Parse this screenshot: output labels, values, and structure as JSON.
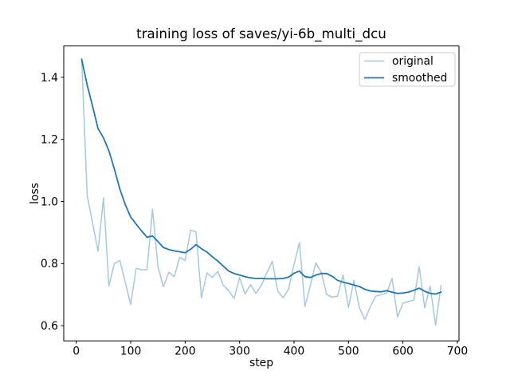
{
  "figure": {
    "title": "training loss of saves/yi-6b_multi_dcu",
    "background_color": "#ffffff",
    "spine_color": "#000000"
  },
  "chart_data": {
    "type": "line",
    "title": "training loss of saves/yi-6b_multi_dcu",
    "xlabel": "step",
    "ylabel": "loss",
    "xlim": [
      -23,
      703
    ],
    "ylim": [
      0.551,
      1.501
    ],
    "xticks": [
      0,
      100,
      200,
      300,
      400,
      500,
      600,
      700
    ],
    "yticks": [
      0.6,
      0.8,
      1.0,
      1.2,
      1.4
    ],
    "grid": false,
    "legend_position": "upper right",
    "x": [
      10,
      20,
      30,
      40,
      50,
      60,
      70,
      80,
      90,
      100,
      110,
      120,
      130,
      140,
      150,
      160,
      170,
      180,
      190,
      200,
      210,
      220,
      230,
      240,
      250,
      260,
      270,
      280,
      290,
      300,
      310,
      320,
      330,
      340,
      350,
      360,
      370,
      380,
      390,
      400,
      410,
      420,
      430,
      440,
      450,
      460,
      470,
      480,
      490,
      500,
      510,
      520,
      530,
      540,
      550,
      560,
      570,
      580,
      590,
      600,
      610,
      620,
      630,
      640,
      650,
      660,
      670
    ],
    "series": [
      {
        "name": "original",
        "color": "#a5c8e1",
        "linewidth": 1.5,
        "values": [
          1.458,
          1.02,
          0.93,
          0.84,
          1.012,
          0.728,
          0.8,
          0.81,
          0.74,
          0.668,
          0.785,
          0.78,
          0.78,
          0.975,
          0.79,
          0.725,
          0.772,
          0.758,
          0.82,
          0.81,
          0.908,
          0.902,
          0.69,
          0.77,
          0.755,
          0.775,
          0.73,
          0.713,
          0.688,
          0.755,
          0.702,
          0.732,
          0.704,
          0.73,
          0.77,
          0.807,
          0.712,
          0.69,
          0.718,
          0.797,
          0.868,
          0.662,
          0.73,
          0.803,
          0.772,
          0.7,
          0.692,
          0.695,
          0.764,
          0.658,
          0.746,
          0.658,
          0.62,
          0.66,
          0.695,
          0.7,
          0.704,
          0.752,
          0.628,
          0.672,
          0.678,
          0.682,
          0.79,
          0.657,
          0.727,
          0.602,
          0.73
        ]
      },
      {
        "name": "smoothed",
        "color": "#1f77b4",
        "linewidth": 1.8,
        "values": [
          1.458,
          1.375,
          1.307,
          1.235,
          1.205,
          1.163,
          1.105,
          1.04,
          0.99,
          0.95,
          0.927,
          0.905,
          0.885,
          0.889,
          0.871,
          0.852,
          0.845,
          0.841,
          0.838,
          0.835,
          0.846,
          0.861,
          0.848,
          0.837,
          0.822,
          0.808,
          0.792,
          0.776,
          0.768,
          0.763,
          0.758,
          0.754,
          0.752,
          0.752,
          0.751,
          0.751,
          0.751,
          0.752,
          0.756,
          0.769,
          0.776,
          0.758,
          0.755,
          0.763,
          0.768,
          0.768,
          0.759,
          0.746,
          0.74,
          0.736,
          0.731,
          0.726,
          0.717,
          0.712,
          0.71,
          0.709,
          0.713,
          0.708,
          0.704,
          0.705,
          0.708,
          0.714,
          0.721,
          0.711,
          0.704,
          0.702,
          0.708
        ]
      }
    ]
  },
  "legend": {
    "border_color": "#cccccc",
    "background_color": "#ffffff"
  }
}
